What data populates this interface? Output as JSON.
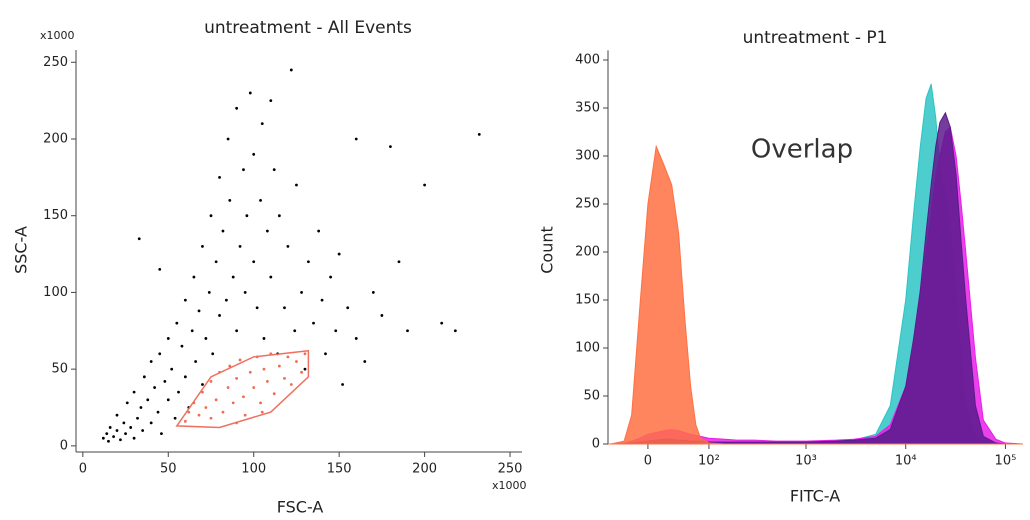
{
  "chart_data": [
    {
      "type": "scatter",
      "title": "untreatment - All Events",
      "x_label": "FSC-A",
      "y_label": "SSC-A",
      "x_multiplier_label": "x1000",
      "y_multiplier_label": "x1000",
      "xlim": [
        -4,
        257
      ],
      "ylim": [
        -4,
        258
      ],
      "xticks": [
        0,
        50,
        100,
        150,
        200,
        250
      ],
      "yticks": [
        0,
        50,
        100,
        150,
        200,
        250
      ],
      "gate": {
        "color": "#f07060",
        "x": [
          55,
          75,
          100,
          132,
          132,
          110,
          80
        ],
        "y": [
          13,
          45,
          58,
          62,
          45,
          22,
          12
        ]
      },
      "series": [
        {
          "color": "#000000",
          "x": [
            12,
            14,
            15,
            16,
            18,
            20,
            20,
            22,
            24,
            25,
            26,
            28,
            30,
            30,
            32,
            34,
            35,
            36,
            38,
            40,
            40,
            42,
            44,
            45,
            46,
            48,
            50,
            50,
            52,
            54,
            55,
            56,
            58,
            60,
            60,
            62,
            64,
            65,
            66,
            68,
            70,
            70,
            72,
            74,
            75,
            76,
            78,
            80,
            80,
            82,
            84,
            85,
            86,
            88,
            90,
            90,
            92,
            94,
            95,
            96,
            98,
            100,
            100,
            102,
            104,
            105,
            106,
            108,
            110,
            110,
            112,
            114,
            115,
            118,
            120,
            122,
            124,
            125,
            128,
            130,
            132,
            135,
            138,
            140,
            142,
            145,
            148,
            150,
            152,
            155,
            160,
            165,
            170,
            175,
            180,
            185,
            190,
            200,
            210,
            218,
            232,
            33,
            45,
            160
          ],
          "values": [
            5,
            8,
            3,
            12,
            6,
            10,
            20,
            4,
            15,
            8,
            28,
            12,
            5,
            35,
            18,
            25,
            10,
            45,
            30,
            15,
            55,
            38,
            22,
            60,
            8,
            42,
            30,
            70,
            50,
            18,
            80,
            35,
            65,
            45,
            95,
            25,
            75,
            110,
            55,
            88,
            40,
            130,
            70,
            100,
            150,
            60,
            120,
            85,
            175,
            140,
            95,
            200,
            160,
            110,
            75,
            220,
            130,
            180,
            100,
            150,
            230,
            120,
            190,
            90,
            160,
            210,
            70,
            140,
            110,
            225,
            180,
            60,
            150,
            90,
            130,
            245,
            75,
            170,
            100,
            50,
            120,
            80,
            140,
            95,
            60,
            110,
            75,
            125,
            40,
            90,
            70,
            55,
            100,
            85,
            195,
            120,
            75,
            170,
            80,
            75,
            203,
            135,
            115,
            200
          ]
        },
        {
          "color": "#f26a50",
          "x": [
            60,
            62,
            65,
            68,
            70,
            72,
            75,
            75,
            78,
            80,
            82,
            85,
            86,
            88,
            90,
            92,
            94,
            95,
            98,
            100,
            102,
            104,
            106,
            108,
            110,
            112,
            115,
            118,
            120,
            122,
            125,
            128,
            130,
            105,
            90
          ],
          "values": [
            16,
            22,
            28,
            20,
            35,
            25,
            42,
            18,
            30,
            48,
            22,
            38,
            52,
            28,
            44,
            56,
            32,
            20,
            48,
            38,
            58,
            28,
            50,
            42,
            60,
            34,
            52,
            44,
            58,
            40,
            55,
            48,
            60,
            22,
            15
          ]
        }
      ]
    },
    {
      "type": "histogram_overlay",
      "title": "untreatment - P1",
      "x_label": "FITC-A",
      "y_label": "Count",
      "annotation": "Overlap",
      "xscale": "asinh",
      "xscale_cofactor": 26,
      "xlim": [
        -55,
        150000
      ],
      "ylim": [
        0,
        410
      ],
      "xticks": [
        0,
        {
          "value": 100,
          "label": "10²"
        },
        {
          "value": 1000,
          "label": "10³"
        },
        {
          "value": 10000,
          "label": "10⁴"
        },
        {
          "value": 100000,
          "label": "10⁵"
        }
      ],
      "yticks": [
        0,
        50,
        100,
        150,
        200,
        250,
        300,
        350,
        400
      ],
      "x": [
        -100,
        -50,
        -30,
        -20,
        -10,
        0,
        10,
        20,
        30,
        40,
        50,
        60,
        70,
        80,
        100,
        150,
        200,
        300,
        500,
        1000,
        2000,
        3000,
        5000,
        7000,
        10000,
        12000,
        14000,
        16000,
        18000,
        20000,
        22000,
        25000,
        28000,
        32000,
        36000,
        40000,
        50000,
        60000,
        80000,
        100000,
        150000
      ],
      "series": [
        {
          "color": "#2ec4c4",
          "values": [
            0,
            0,
            0,
            1,
            2,
            3,
            4,
            5,
            5,
            4,
            4,
            3,
            3,
            3,
            2,
            2,
            2,
            2,
            2,
            2,
            3,
            4,
            10,
            40,
            150,
            240,
            310,
            360,
            375,
            340,
            290,
            260,
            230,
            160,
            90,
            40,
            8,
            2,
            0,
            0,
            0
          ]
        },
        {
          "color": "#e81ee8",
          "values": [
            0,
            0,
            1,
            3,
            6,
            10,
            12,
            14,
            15,
            14,
            12,
            10,
            9,
            8,
            6,
            5,
            4,
            4,
            3,
            3,
            4,
            5,
            8,
            20,
            60,
            100,
            150,
            200,
            240,
            280,
            300,
            325,
            330,
            300,
            250,
            200,
            90,
            25,
            5,
            1,
            0
          ]
        },
        {
          "color": "#5b1a8c",
          "values": [
            0,
            0,
            0,
            1,
            2,
            3,
            4,
            5,
            5,
            4,
            4,
            3,
            3,
            3,
            2,
            2,
            2,
            2,
            2,
            2,
            3,
            4,
            6,
            15,
            60,
            110,
            160,
            220,
            270,
            310,
            335,
            345,
            330,
            280,
            210,
            150,
            40,
            8,
            1,
            0,
            0
          ]
        },
        {
          "color": "#ff7043",
          "values": [
            0,
            0,
            3,
            30,
            140,
            250,
            310,
            290,
            270,
            220,
            130,
            60,
            20,
            6,
            1,
            0,
            0,
            0,
            0,
            0,
            0,
            0,
            0,
            0,
            0,
            0,
            0,
            0,
            0,
            0,
            0,
            0,
            0,
            0,
            0,
            0,
            0,
            0,
            0,
            0,
            0
          ]
        }
      ]
    }
  ]
}
